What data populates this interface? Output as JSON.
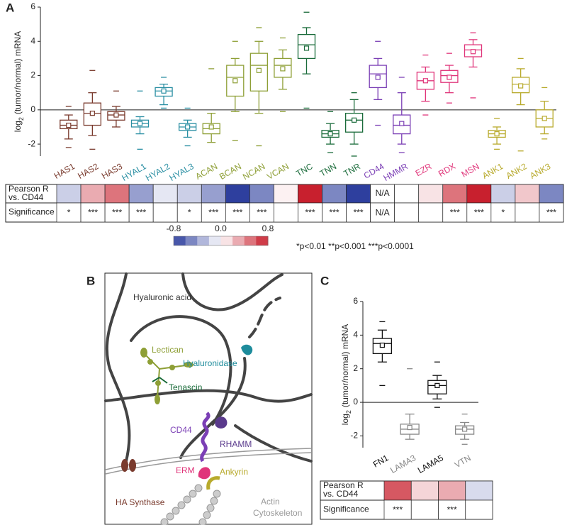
{
  "chart_data": [
    {
      "panel": "A",
      "type": "box",
      "y_label": [
        "log",
        "2",
        "(tumor/normal) mRNA"
      ],
      "ylim": [
        -2.7,
        6
      ],
      "yticks": [
        -2,
        0,
        2,
        4,
        6
      ],
      "categories": [
        "HAS1",
        "HAS2",
        "HAS3",
        "HYAL1",
        "HYAL2",
        "HYAL3",
        "ACAN",
        "BCAN",
        "NCAN",
        "VCAN",
        "TNC",
        "TNN",
        "TNR",
        "CD44",
        "HMMR",
        "EZR",
        "RDX",
        "MSN",
        "ANK1",
        "ANK2",
        "ANK3"
      ],
      "colors": [
        "#7a3b2e",
        "#7a3b2e",
        "#7a3b2e",
        "#2a8fa3",
        "#2a8fa3",
        "#2a8fa3",
        "#8e9f36",
        "#8e9f36",
        "#8e9f36",
        "#8e9f36",
        "#1a6b3a",
        "#1a6b3a",
        "#1a6b3a",
        "#7b3fb5",
        "#7b3fb5",
        "#e0357a",
        "#e0357a",
        "#e0357a",
        "#b8aa2c",
        "#b8aa2c",
        "#b8aa2c"
      ],
      "boxes": {
        "max": [
          0.2,
          2.3,
          1.1,
          1.1,
          1.9,
          0.1,
          2.4,
          4.0,
          4.8,
          4.2,
          5.7,
          -0.1,
          1.0,
          4.0,
          1.9,
          3.2,
          3.3,
          4.5,
          -0.5,
          3.0,
          1.3
        ],
        "whisker_high": [
          -0.3,
          1.0,
          0.2,
          -0.4,
          1.5,
          -0.6,
          -0.2,
          3.0,
          4.0,
          3.5,
          4.8,
          -0.8,
          0.6,
          3.0,
          1.0,
          2.5,
          2.6,
          4.1,
          -1.0,
          2.4,
          0.5
        ],
        "q3": [
          -0.6,
          0.4,
          -0.1,
          -0.6,
          1.3,
          -0.8,
          -0.8,
          2.6,
          3.3,
          3.0,
          4.4,
          -1.2,
          -0.2,
          2.6,
          -0.3,
          2.2,
          2.3,
          3.8,
          -1.2,
          1.9,
          0.0
        ],
        "median": [
          -0.9,
          -0.2,
          -0.3,
          -0.8,
          1.1,
          -1.0,
          -1.1,
          1.9,
          2.6,
          2.6,
          3.8,
          -1.4,
          -0.6,
          2.1,
          -0.9,
          1.7,
          2.0,
          3.5,
          -1.4,
          1.5,
          -0.5
        ],
        "q1": [
          -1.1,
          -0.9,
          -0.6,
          -1.0,
          0.8,
          -1.2,
          -1.4,
          0.8,
          1.1,
          1.9,
          3.0,
          -1.6,
          -1.3,
          1.3,
          -1.4,
          1.2,
          1.6,
          3.1,
          -1.6,
          1.0,
          -1.0
        ],
        "whisker_low": [
          -1.7,
          -1.5,
          -1.0,
          -1.4,
          0.3,
          -1.6,
          -1.9,
          -0.1,
          -0.2,
          1.2,
          2.1,
          -2.0,
          -2.0,
          0.6,
          -2.0,
          0.5,
          1.0,
          2.5,
          -2.0,
          0.3,
          -1.4
        ],
        "min": [
          -2.2,
          -2.3,
          null,
          -2.3,
          0.1,
          -2.1,
          null,
          -1.8,
          -2.1,
          -0.1,
          0.1,
          -2.5,
          -2.7,
          -0.9,
          -2.5,
          -0.3,
          0.4,
          0.7,
          -2.3,
          -2.4,
          -1.7
        ],
        "mean": [
          -0.9,
          -0.2,
          -0.3,
          -0.8,
          1.1,
          -1.0,
          -1.0,
          1.7,
          2.3,
          2.4,
          3.6,
          -1.4,
          -0.6,
          1.9,
          -0.8,
          1.7,
          1.9,
          3.4,
          -1.4,
          1.4,
          -0.5
        ]
      },
      "heatmap": {
        "r_label": [
          "Pearson R",
          "vs. CD44"
        ],
        "sig_label": "Significance",
        "pearson_r": [
          -0.2,
          0.3,
          0.5,
          -0.4,
          -0.1,
          -0.2,
          -0.4,
          -0.8,
          -0.5,
          0.05,
          0.9,
          -0.5,
          -0.8,
          "N/A",
          0.0,
          0.1,
          0.5,
          0.8,
          -0.2,
          0.2,
          -0.5
        ],
        "significance": [
          "*",
          "***",
          "***",
          "***",
          null,
          "*",
          "***",
          "***",
          "***",
          null,
          "***",
          "***",
          "***",
          "N/A",
          null,
          null,
          "***",
          "***",
          "*",
          null,
          "***"
        ]
      },
      "colorbar": {
        "ticks": [
          -0.8,
          {
            "value": 0,
            "label": "0.0"
          },
          0.8
        ],
        "colors": {
          "low": "#2e3f9e",
          "mid": "#ffffff",
          "high": "#c8202e"
        }
      },
      "p_legend": "*p<0.01 **p<0.001 ***p<0.0001"
    },
    {
      "panel": "C",
      "type": "box",
      "y_label": [
        "log",
        "2",
        "(tumor/normal) mRNA"
      ],
      "ylim": [
        -2.7,
        6
      ],
      "yticks": [
        -2,
        0,
        2,
        4,
        6
      ],
      "categories": [
        "FN1",
        "LAMA3",
        "LAMA5",
        "VTN"
      ],
      "colors": [
        "#111111",
        "#888888",
        "#111111",
        "#888888"
      ],
      "boxes": {
        "max": [
          4.8,
          2.0,
          2.4,
          -0.7
        ],
        "whisker_high": [
          4.3,
          -0.7,
          1.6,
          -1.2
        ],
        "q3": [
          3.8,
          -1.3,
          1.3,
          -1.4
        ],
        "median": [
          3.5,
          -1.6,
          1.0,
          -1.6
        ],
        "q1": [
          2.9,
          -1.9,
          0.5,
          -1.9
        ],
        "whisker_low": [
          2.4,
          -2.2,
          0.2,
          -2.2
        ],
        "min": [
          1.0,
          null,
          -0.3,
          -2.5
        ],
        "mean": [
          3.4,
          -1.5,
          1.0,
          -1.6
        ]
      },
      "heatmap": {
        "r_label": [
          "Pearson R",
          "vs. CD44"
        ],
        "sig_label": "Significance",
        "pearson_r": [
          0.6,
          0.15,
          0.3,
          -0.15
        ],
        "significance": [
          "***",
          null,
          "***",
          null
        ]
      }
    }
  ],
  "diagram": {
    "panel": "B",
    "labels": {
      "hyaluronic_acid": "Hyaluronic acid",
      "hyaluronidase": "Hyaluronidase",
      "lectican": "Lectican",
      "tenascin": "Tenascin",
      "cd44": "CD44",
      "rhamm": "RHAMM",
      "erm": "ERM",
      "ankyrin": "Ankyrin",
      "ha_synthase": "HA Synthase",
      "actin": [
        "Actin",
        "Cytoskeleton"
      ]
    }
  }
}
